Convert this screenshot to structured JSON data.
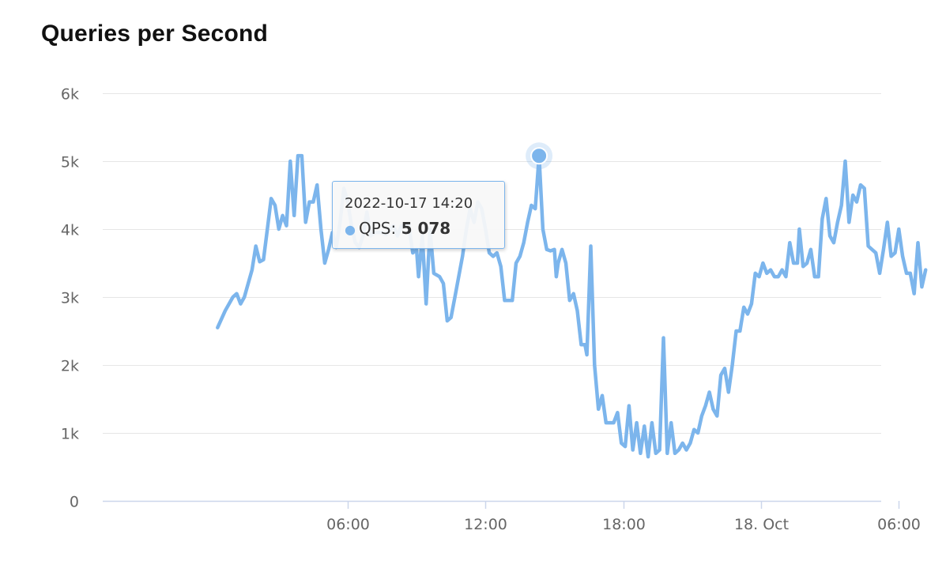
{
  "colors": {
    "series": "#7cb5ec",
    "grid": "#e6e6e6",
    "axis": "#ccd6eb"
  },
  "chart_data": {
    "type": "line",
    "title": "Queries per Second",
    "xlabel": "",
    "ylabel": "",
    "ylim": [
      0,
      6000
    ],
    "yticks": [
      {
        "value": 0,
        "label": "0"
      },
      {
        "value": 1000,
        "label": "1k"
      },
      {
        "value": 2000,
        "label": "2k"
      },
      {
        "value": 3000,
        "label": "3k"
      },
      {
        "value": 4000,
        "label": "4k"
      },
      {
        "value": 5000,
        "label": "5k"
      },
      {
        "value": 6000,
        "label": "6k"
      }
    ],
    "xlim": [
      "2022-10-17 00:40",
      "2022-10-18 10:40"
    ],
    "xticks": [
      {
        "value": "2022-10-17 06:00",
        "label": "06:00"
      },
      {
        "value": "2022-10-17 12:00",
        "label": "12:00"
      },
      {
        "value": "2022-10-17 18:00",
        "label": "18:00"
      },
      {
        "value": "2022-10-18 00:00",
        "label": "18. Oct"
      },
      {
        "value": "2022-10-18 06:00",
        "label": "06:00"
      }
    ],
    "grid": true,
    "legend": "none",
    "series": [
      {
        "values": [
          [
            "2022-10-17 00:20",
            2550
          ],
          [
            "2022-10-17 00:40",
            2800
          ],
          [
            "2022-10-17 01:00",
            3000
          ],
          [
            "2022-10-17 01:10",
            3050
          ],
          [
            "2022-10-17 01:20",
            2900
          ],
          [
            "2022-10-17 01:30",
            3000
          ],
          [
            "2022-10-17 01:50",
            3400
          ],
          [
            "2022-10-17 02:00",
            3750
          ],
          [
            "2022-10-17 02:10",
            3520
          ],
          [
            "2022-10-17 02:20",
            3550
          ],
          [
            "2022-10-17 02:30",
            4000
          ],
          [
            "2022-10-17 02:40",
            4450
          ],
          [
            "2022-10-17 02:50",
            4350
          ],
          [
            "2022-10-17 03:00",
            4000
          ],
          [
            "2022-10-17 03:10",
            4200
          ],
          [
            "2022-10-17 03:20",
            4050
          ],
          [
            "2022-10-17 03:30",
            5000
          ],
          [
            "2022-10-17 03:40",
            4200
          ],
          [
            "2022-10-17 03:50",
            5080
          ],
          [
            "2022-10-17 04:00",
            5080
          ],
          [
            "2022-10-17 04:10",
            4100
          ],
          [
            "2022-10-17 04:20",
            4400
          ],
          [
            "2022-10-17 04:30",
            4400
          ],
          [
            "2022-10-17 04:40",
            4650
          ],
          [
            "2022-10-17 04:50",
            4000
          ],
          [
            "2022-10-17 05:00",
            3500
          ],
          [
            "2022-10-17 05:10",
            3700
          ],
          [
            "2022-10-17 05:20",
            3950
          ],
          [
            "2022-10-17 05:30",
            3730
          ],
          [
            "2022-10-17 05:40",
            4100
          ],
          [
            "2022-10-17 05:50",
            4600
          ],
          [
            "2022-10-17 06:00",
            4400
          ],
          [
            "2022-10-17 06:10",
            4050
          ],
          [
            "2022-10-17 06:20",
            3800
          ],
          [
            "2022-10-17 06:30",
            3730
          ],
          [
            "2022-10-17 06:40",
            3900
          ],
          [
            "2022-10-17 06:50",
            4250
          ],
          [
            "2022-10-17 07:00",
            3900
          ],
          [
            "2022-10-17 07:10",
            3950
          ],
          [
            "2022-10-17 07:30",
            3950
          ],
          [
            "2022-10-17 07:40",
            3920
          ],
          [
            "2022-10-17 08:00",
            4050
          ],
          [
            "2022-10-17 08:10",
            3900
          ],
          [
            "2022-10-17 08:20",
            4050
          ],
          [
            "2022-10-17 08:40",
            4050
          ],
          [
            "2022-10-17 08:50",
            3650
          ],
          [
            "2022-10-17 09:00",
            3700
          ],
          [
            "2022-10-17 09:05",
            3300
          ],
          [
            "2022-10-17 09:15",
            3900
          ],
          [
            "2022-10-17 09:25",
            2900
          ],
          [
            "2022-10-17 09:35",
            4000
          ],
          [
            "2022-10-17 09:45",
            3350
          ],
          [
            "2022-10-17 10:00",
            3300
          ],
          [
            "2022-10-17 10:10",
            3200
          ],
          [
            "2022-10-17 10:20",
            2650
          ],
          [
            "2022-10-17 10:30",
            2700
          ],
          [
            "2022-10-17 10:40",
            3000
          ],
          [
            "2022-10-17 11:00",
            3600
          ],
          [
            "2022-10-17 11:10",
            4000
          ],
          [
            "2022-10-17 11:20",
            4300
          ],
          [
            "2022-10-17 11:30",
            4100
          ],
          [
            "2022-10-17 11:40",
            4400
          ],
          [
            "2022-10-17 11:50",
            4300
          ],
          [
            "2022-10-17 12:00",
            4000
          ],
          [
            "2022-10-17 12:10",
            3650
          ],
          [
            "2022-10-17 12:20",
            3600
          ],
          [
            "2022-10-17 12:30",
            3650
          ],
          [
            "2022-10-17 12:40",
            3450
          ],
          [
            "2022-10-17 12:50",
            2950
          ],
          [
            "2022-10-17 13:10",
            2950
          ],
          [
            "2022-10-17 13:20",
            3500
          ],
          [
            "2022-10-17 13:30",
            3600
          ],
          [
            "2022-10-17 13:40",
            3800
          ],
          [
            "2022-10-17 13:50",
            4100
          ],
          [
            "2022-10-17 14:00",
            4350
          ],
          [
            "2022-10-17 14:10",
            4300
          ],
          [
            "2022-10-17 14:20",
            5078
          ],
          [
            "2022-10-17 14:30",
            4000
          ],
          [
            "2022-10-17 14:40",
            3700
          ],
          [
            "2022-10-17 14:50",
            3680
          ],
          [
            "2022-10-17 15:00",
            3700
          ],
          [
            "2022-10-17 15:05",
            3300
          ],
          [
            "2022-10-17 15:10",
            3500
          ],
          [
            "2022-10-17 15:20",
            3700
          ],
          [
            "2022-10-17 15:30",
            3500
          ],
          [
            "2022-10-17 15:40",
            2950
          ],
          [
            "2022-10-17 15:50",
            3050
          ],
          [
            "2022-10-17 16:00",
            2800
          ],
          [
            "2022-10-17 16:10",
            2300
          ],
          [
            "2022-10-17 16:20",
            2300
          ],
          [
            "2022-10-17 16:25",
            2150
          ],
          [
            "2022-10-17 16:35",
            3750
          ],
          [
            "2022-10-17 16:45",
            2000
          ],
          [
            "2022-10-17 16:55",
            1350
          ],
          [
            "2022-10-17 17:05",
            1550
          ],
          [
            "2022-10-17 17:15",
            1150
          ],
          [
            "2022-10-17 17:35",
            1150
          ],
          [
            "2022-10-17 17:45",
            1300
          ],
          [
            "2022-10-17 17:55",
            850
          ],
          [
            "2022-10-17 18:05",
            800
          ],
          [
            "2022-10-17 18:15",
            1400
          ],
          [
            "2022-10-17 18:25",
            750
          ],
          [
            "2022-10-17 18:35",
            1150
          ],
          [
            "2022-10-17 18:45",
            700
          ],
          [
            "2022-10-17 18:55",
            1100
          ],
          [
            "2022-10-17 19:05",
            650
          ],
          [
            "2022-10-17 19:15",
            1150
          ],
          [
            "2022-10-17 19:25",
            700
          ],
          [
            "2022-10-17 19:35",
            750
          ],
          [
            "2022-10-17 19:45",
            2400
          ],
          [
            "2022-10-17 19:55",
            700
          ],
          [
            "2022-10-17 20:05",
            1150
          ],
          [
            "2022-10-17 20:15",
            700
          ],
          [
            "2022-10-17 20:25",
            750
          ],
          [
            "2022-10-17 20:35",
            850
          ],
          [
            "2022-10-17 20:45",
            750
          ],
          [
            "2022-10-17 20:55",
            850
          ],
          [
            "2022-10-17 21:05",
            1050
          ],
          [
            "2022-10-17 21:15",
            1000
          ],
          [
            "2022-10-17 21:25",
            1250
          ],
          [
            "2022-10-17 21:35",
            1400
          ],
          [
            "2022-10-17 21:45",
            1600
          ],
          [
            "2022-10-17 21:55",
            1350
          ],
          [
            "2022-10-17 22:05",
            1250
          ],
          [
            "2022-10-17 22:15",
            1850
          ],
          [
            "2022-10-17 22:25",
            1950
          ],
          [
            "2022-10-17 22:35",
            1600
          ],
          [
            "2022-10-17 22:45",
            2000
          ],
          [
            "2022-10-17 22:55",
            2500
          ],
          [
            "2022-10-17 23:05",
            2500
          ],
          [
            "2022-10-17 23:15",
            2850
          ],
          [
            "2022-10-17 23:25",
            2750
          ],
          [
            "2022-10-17 23:35",
            2900
          ],
          [
            "2022-10-17 23:45",
            3350
          ],
          [
            "2022-10-17 23:55",
            3300
          ],
          [
            "2022-10-18 00:05",
            3500
          ],
          [
            "2022-10-18 00:15",
            3350
          ],
          [
            "2022-10-18 00:25",
            3400
          ],
          [
            "2022-10-18 00:35",
            3300
          ],
          [
            "2022-10-18 00:45",
            3300
          ],
          [
            "2022-10-18 00:55",
            3400
          ],
          [
            "2022-10-18 01:05",
            3300
          ],
          [
            "2022-10-18 01:15",
            3800
          ],
          [
            "2022-10-18 01:25",
            3500
          ],
          [
            "2022-10-18 01:35",
            3500
          ],
          [
            "2022-10-18 01:40",
            4000
          ],
          [
            "2022-10-18 01:50",
            3450
          ],
          [
            "2022-10-18 02:00",
            3500
          ],
          [
            "2022-10-18 02:10",
            3700
          ],
          [
            "2022-10-18 02:20",
            3300
          ],
          [
            "2022-10-18 02:30",
            3300
          ],
          [
            "2022-10-18 02:40",
            4150
          ],
          [
            "2022-10-18 02:50",
            4450
          ],
          [
            "2022-10-18 03:00",
            3900
          ],
          [
            "2022-10-18 03:10",
            3800
          ],
          [
            "2022-10-18 03:20",
            4100
          ],
          [
            "2022-10-18 03:30",
            4350
          ],
          [
            "2022-10-18 03:40",
            5000
          ],
          [
            "2022-10-18 03:50",
            4100
          ],
          [
            "2022-10-18 04:00",
            4500
          ],
          [
            "2022-10-18 04:10",
            4400
          ],
          [
            "2022-10-18 04:20",
            4650
          ],
          [
            "2022-10-18 04:30",
            4600
          ],
          [
            "2022-10-18 04:40",
            3750
          ],
          [
            "2022-10-18 04:50",
            3700
          ],
          [
            "2022-10-18 05:00",
            3650
          ],
          [
            "2022-10-18 05:10",
            3350
          ],
          [
            "2022-10-18 05:20",
            3700
          ],
          [
            "2022-10-18 05:30",
            4100
          ],
          [
            "2022-10-18 05:40",
            3600
          ],
          [
            "2022-10-18 05:50",
            3650
          ],
          [
            "2022-10-18 06:00",
            4000
          ],
          [
            "2022-10-18 06:10",
            3600
          ],
          [
            "2022-10-18 06:20",
            3350
          ],
          [
            "2022-10-18 06:30",
            3350
          ],
          [
            "2022-10-18 06:40",
            3050
          ],
          [
            "2022-10-18 06:50",
            3800
          ],
          [
            "2022-10-18 07:00",
            3150
          ],
          [
            "2022-10-18 07:10",
            3400
          ]
        ]
      }
    ],
    "tooltip": {
      "date": "2022-10-17 14:20",
      "series_label": "QPS:",
      "value_label": "5 078",
      "marker_x": "2022-10-17 14:20",
      "marker_y": 5078
    }
  }
}
